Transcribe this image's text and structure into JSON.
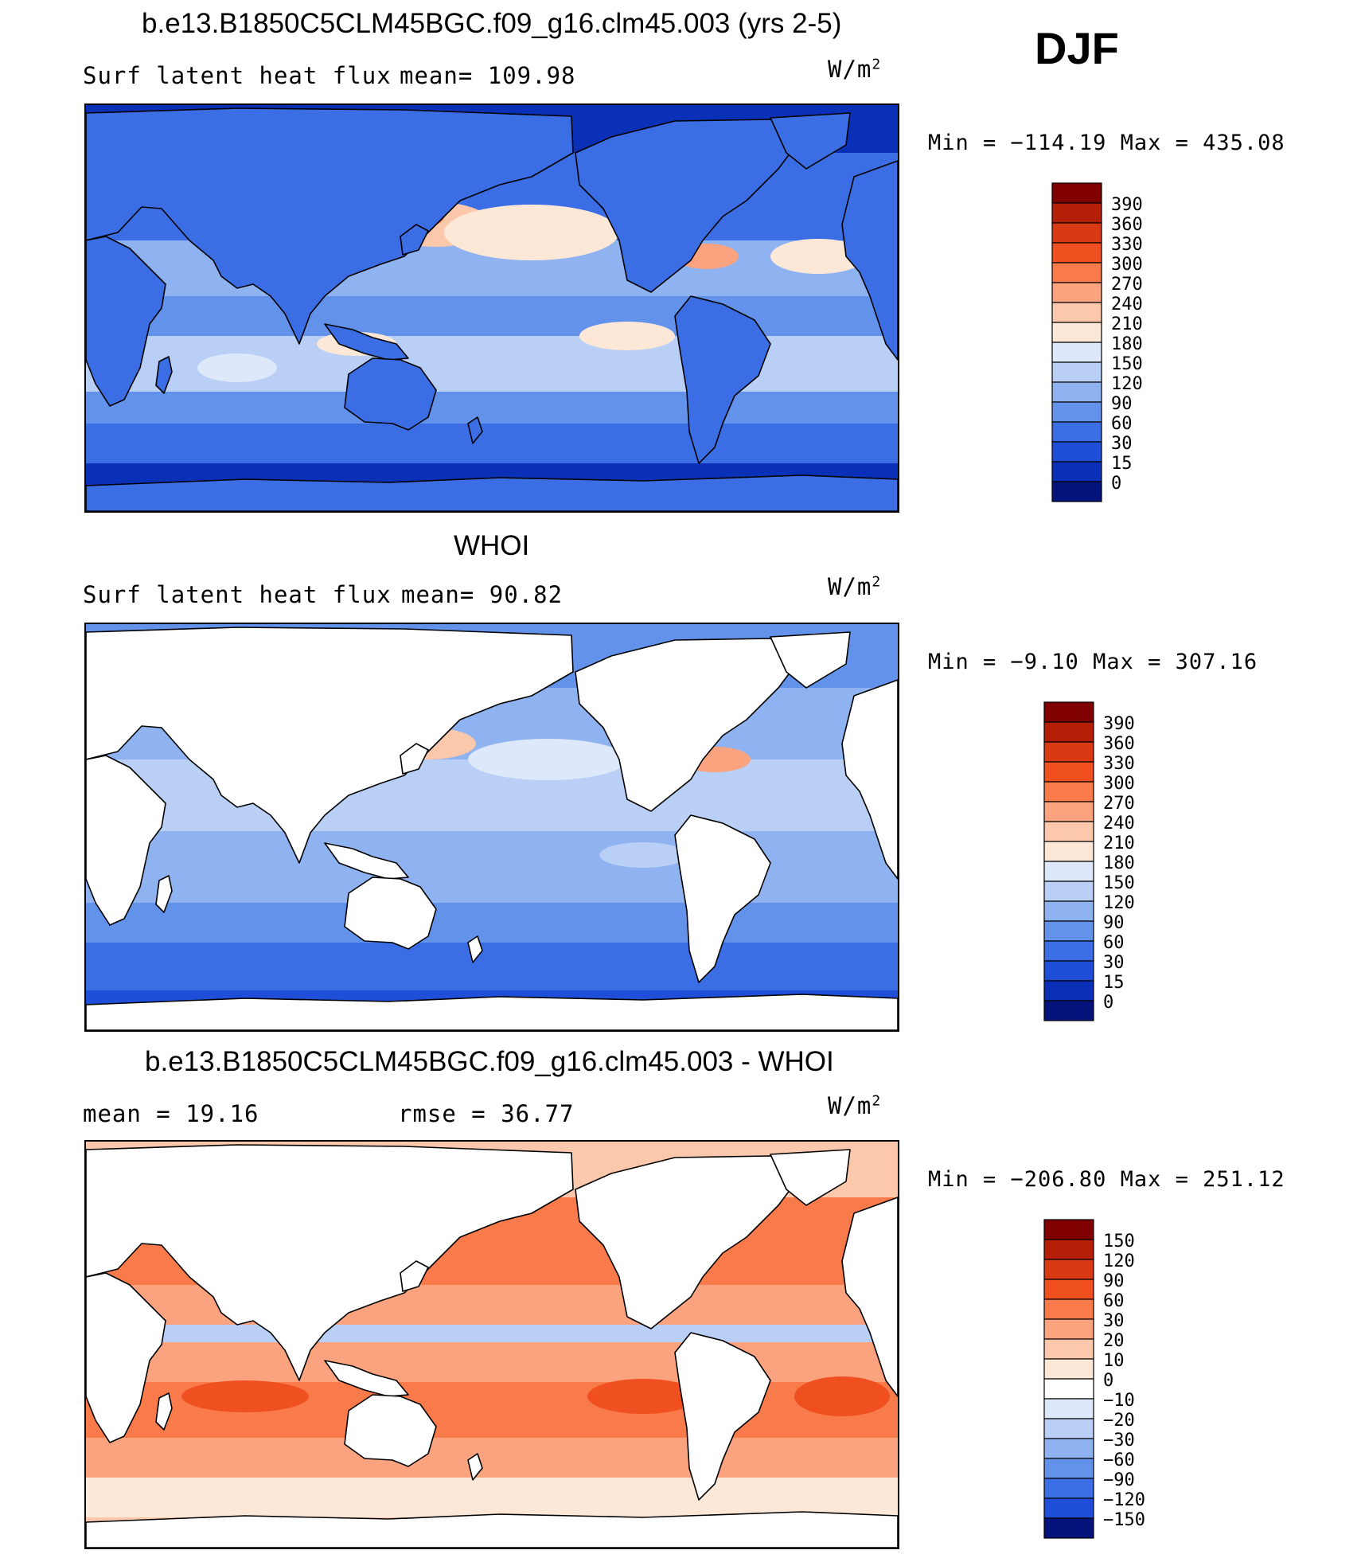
{
  "season_label": "DJF",
  "panels": [
    {
      "title": "b.e13.B1850C5CLM45BGC.f09_g16.clm45.003 (yrs 2-5)",
      "left_label": "Surf latent heat flux",
      "center_label": "mean= 109.98",
      "units": "W/m",
      "units_exp": "2",
      "minmax": "Min = −114.19 Max = 435.08",
      "colorbar_labels": [
        "390",
        "360",
        "330",
        "300",
        "270",
        "240",
        "210",
        "180",
        "150",
        "120",
        "90",
        "60",
        "30",
        "15",
        "0"
      ],
      "colorbar_colors": [
        "#800000",
        "#b51f07",
        "#d93a13",
        "#f04f1f",
        "#f97a4b",
        "#fba37f",
        "#fcc8ac",
        "#fde8d8",
        "#dde9fa",
        "#b9cff5",
        "#8fb3f0",
        "#6292ea",
        "#3b6ee4",
        "#1f4ed8",
        "#0b30b8",
        "#04137c"
      ],
      "ocean_only": false
    },
    {
      "title": "WHOI",
      "left_label": "Surf latent heat flux",
      "center_label": "mean= 90.82",
      "units": "W/m",
      "units_exp": "2",
      "minmax": "Min = −9.10 Max = 307.16",
      "colorbar_labels": [
        "390",
        "360",
        "330",
        "300",
        "270",
        "240",
        "210",
        "180",
        "150",
        "120",
        "90",
        "60",
        "30",
        "15",
        "0"
      ],
      "colorbar_colors": [
        "#800000",
        "#b51f07",
        "#d93a13",
        "#f04f1f",
        "#f97a4b",
        "#fba37f",
        "#fcc8ac",
        "#fde8d8",
        "#dde9fa",
        "#b9cff5",
        "#8fb3f0",
        "#6292ea",
        "#3b6ee4",
        "#1f4ed8",
        "#0b30b8",
        "#04137c"
      ],
      "ocean_only": true
    },
    {
      "title": "b.e13.B1850C5CLM45BGC.f09_g16.clm45.003 - WHOI",
      "left_label": "mean = 19.16",
      "center_label": "rmse = 36.77",
      "units": "W/m",
      "units_exp": "2",
      "minmax": "Min = −206.80 Max = 251.12",
      "colorbar_labels": [
        "150",
        "120",
        "90",
        "60",
        "30",
        "20",
        "10",
        "0",
        "−10",
        "−20",
        "−30",
        "−60",
        "−90",
        "−120",
        "−150"
      ],
      "colorbar_colors": [
        "#800000",
        "#b51f07",
        "#d93a13",
        "#f04f1f",
        "#f97a4b",
        "#fba37f",
        "#fcc8ac",
        "#fde8d8",
        "#ffffff",
        "#dde9fa",
        "#b9cff5",
        "#8fb3f0",
        "#6292ea",
        "#3b6ee4",
        "#1f4ed8",
        "#04137c"
      ],
      "ocean_only": true
    }
  ],
  "chart_data": {
    "type": "heatmap",
    "projection": "global cylindrical equidistant, Pacific-centered",
    "maps": [
      {
        "panel": "model",
        "field": "Surf latent heat flux",
        "units": "W/m2",
        "mean": 109.98,
        "min": -114.19,
        "max": 435.08,
        "levels": [
          0,
          15,
          30,
          60,
          90,
          120,
          150,
          180,
          210,
          240,
          270,
          300,
          330,
          360,
          390
        ]
      },
      {
        "panel": "observations (WHOI)",
        "field": "Surf latent heat flux",
        "units": "W/m2",
        "mean": 90.82,
        "min": -9.1,
        "max": 307.16,
        "levels": [
          0,
          15,
          30,
          60,
          90,
          120,
          150,
          180,
          210,
          240,
          270,
          300,
          330,
          360,
          390
        ]
      },
      {
        "panel": "difference (model - WHOI)",
        "units": "W/m2",
        "mean": 19.16,
        "rmse": 36.77,
        "min": -206.8,
        "max": 251.12,
        "levels": [
          -150,
          -120,
          -90,
          -60,
          -30,
          -20,
          -10,
          0,
          10,
          20,
          30,
          60,
          90,
          120,
          150
        ]
      }
    ],
    "grid": false,
    "legend": "right"
  }
}
